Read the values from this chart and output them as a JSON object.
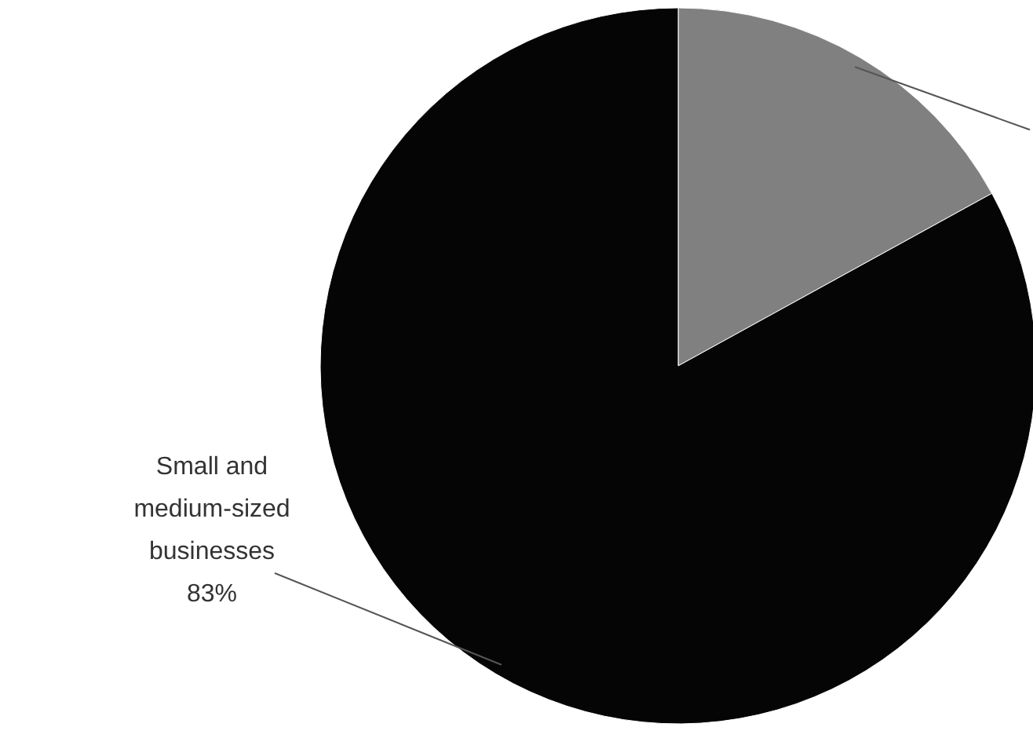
{
  "chart_data": {
    "type": "pie",
    "categories": [
      null,
      "Small and medium-sized businesses"
    ],
    "values": [
      17,
      83
    ],
    "colors": [
      "#808080",
      "#050505"
    ],
    "value_labels": [
      null,
      "83%"
    ]
  }
}
